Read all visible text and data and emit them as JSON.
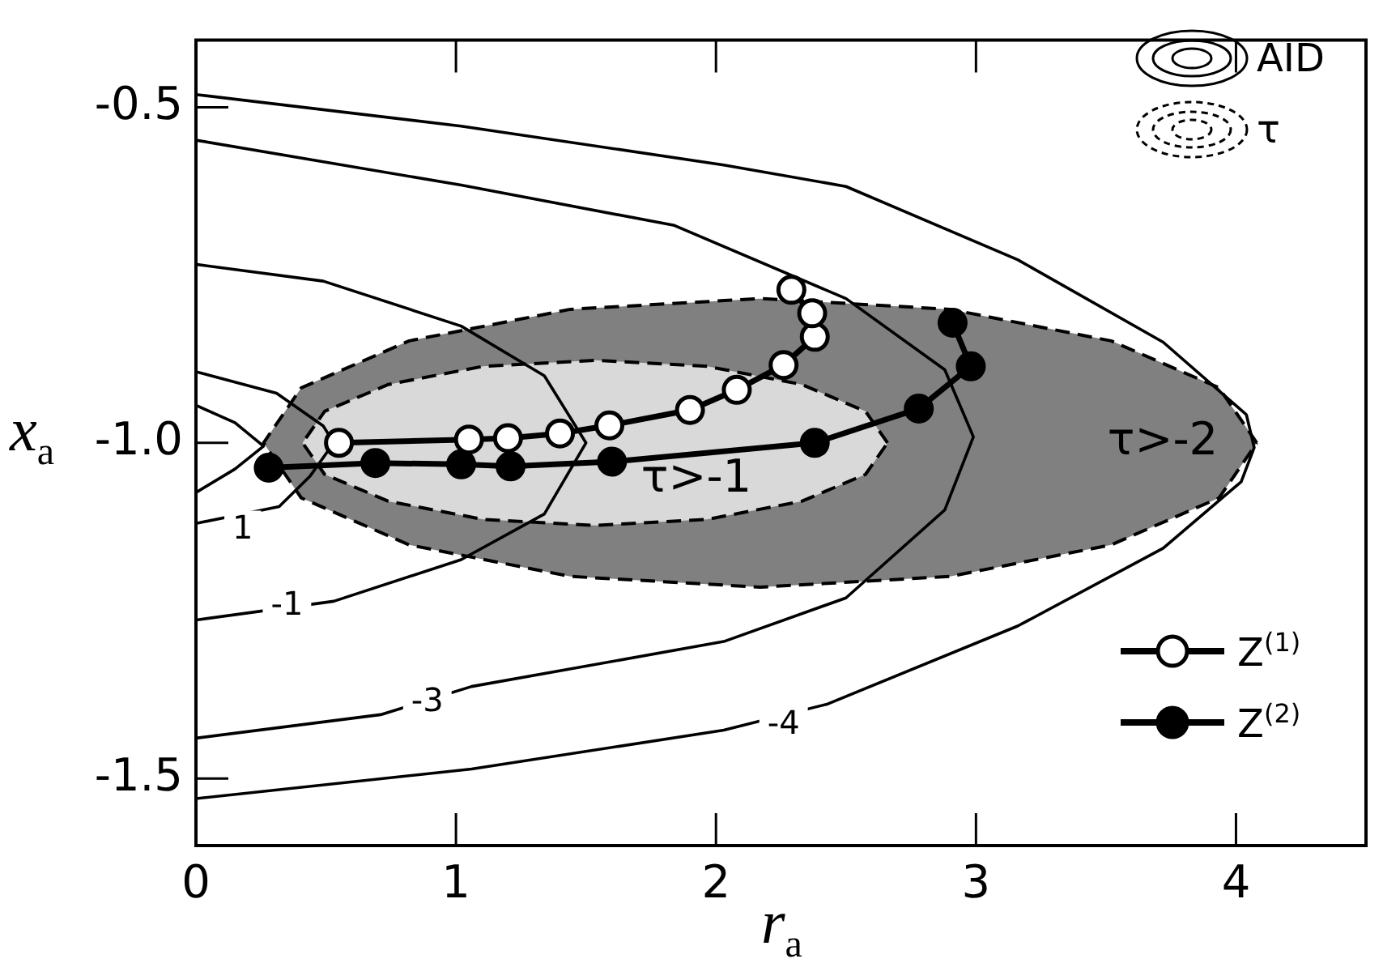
{
  "chart_data": {
    "type": "line",
    "xlabel": "r$_{a}$",
    "ylabel": "x$_{a}$",
    "xlim": [
      0,
      4.5
    ],
    "ylim": [
      -1.6,
      -0.4
    ],
    "xticks": [
      0,
      1,
      2,
      3,
      4
    ],
    "yticks": [
      {
        "value": -0.5,
        "label": "-0.5"
      },
      {
        "value": -1.0,
        "label": "-1.0"
      },
      {
        "value": -1.5,
        "label": "-1.5"
      }
    ],
    "grid": false,
    "legend": "right",
    "series": [
      {
        "type": "line",
        "name": "AID",
        "color": "#000000",
        "marker": "none",
        "x": [
          0,
          0.15,
          0.26,
          0.15,
          0
        ],
        "values": [
          -0.944,
          -0.97,
          -1.005,
          -1.039,
          -1.074
        ]
      },
      {
        "type": "line",
        "color": "#000000",
        "marker": "none",
        "x": [
          0,
          0.31,
          0.49,
          0.53,
          0.44,
          0.32,
          0
        ],
        "values": [
          -0.894,
          -0.926,
          -0.975,
          -1.0,
          -1.049,
          -1.095,
          -1.12
        ]
      },
      {
        "type": "line",
        "color": "#000000",
        "marker": "none",
        "x": [
          0,
          0.49,
          1.02,
          1.34,
          1.5,
          1.34,
          1.02,
          0.53,
          0
        ],
        "values": [
          -0.734,
          -0.759,
          -0.826,
          -0.9,
          -1.0,
          -1.106,
          -1.174,
          -1.236,
          -1.264
        ]
      },
      {
        "type": "line",
        "color": "#000000",
        "marker": "none",
        "x": [
          0,
          1.02,
          1.84,
          2.5,
          2.88,
          2.99,
          2.88,
          2.5,
          2.03,
          1.06,
          0.71,
          0
        ],
        "values": [
          -0.549,
          -0.616,
          -0.676,
          -0.785,
          -0.891,
          -0.991,
          -1.1,
          -1.231,
          -1.296,
          -1.363,
          -1.405,
          -1.44
        ]
      },
      {
        "type": "line",
        "color": "#000000",
        "marker": "none",
        "x": [
          0,
          1.02,
          2.03,
          2.5,
          3.16,
          3.72,
          4.04,
          4.07,
          4.02,
          3.72,
          3.16,
          2.43,
          2.03,
          1.06,
          0
        ],
        "values": [
          -0.481,
          -0.528,
          -0.586,
          -0.618,
          -0.727,
          -0.85,
          -0.958,
          -1.007,
          -1.058,
          -1.157,
          -1.273,
          -1.389,
          -1.428,
          -1.486,
          -1.53
        ]
      },
      {
        "type": "area",
        "name": "τ",
        "color": "#808080",
        "line_style": "dashed",
        "x": [
          4.08,
          3.935,
          3.52,
          2.9,
          2.17,
          1.44,
          0.82,
          0.405,
          0.26,
          0.405,
          0.82,
          1.44,
          2.17,
          2.9,
          3.52,
          3.935,
          4.08
        ],
        "values": [
          -1.0,
          -0.918,
          -0.848,
          -0.801,
          -0.785,
          -0.801,
          -0.848,
          -0.918,
          -1.0,
          -1.082,
          -1.152,
          -1.199,
          -1.215,
          -1.199,
          -1.152,
          -1.082,
          -1.0
        ]
      },
      {
        "type": "area",
        "color": "#d9d9d9",
        "line_style": "dashed",
        "x": [
          2.66,
          2.575,
          2.33,
          1.966,
          1.535,
          1.104,
          0.74,
          0.495,
          0.41,
          0.495,
          0.74,
          1.104,
          1.535,
          1.966,
          2.33,
          2.575,
          2.66
        ],
        "values": [
          -1.0,
          -0.953,
          -0.913,
          -0.886,
          -0.877,
          -0.886,
          -0.913,
          -0.953,
          -1.0,
          -1.047,
          -1.087,
          -1.114,
          -1.123,
          -1.114,
          -1.087,
          -1.047,
          -1.0
        ]
      },
      {
        "type": "line",
        "name": "Z$^{(1)}$",
        "color": "#ffffff",
        "marker": "circle",
        "x": [
          0.55,
          1.05,
          1.2,
          1.4,
          1.59,
          1.9,
          2.08,
          2.26,
          2.38,
          2.37,
          2.29
        ],
        "values": [
          -1.0,
          -0.995,
          -0.993,
          -0.986,
          -0.974,
          -0.951,
          -0.921,
          -0.884,
          -0.842,
          -0.807,
          -0.772
        ]
      },
      {
        "type": "line",
        "name": "Z$^{(2)}$",
        "color": "#000000",
        "marker": "circle",
        "x": [
          0.28,
          0.69,
          1.02,
          1.21,
          1.6,
          2.38,
          2.78,
          2.98,
          2.91
        ],
        "values": [
          -1.037,
          -1.03,
          -1.032,
          -1.035,
          -1.028,
          -1.0,
          -0.949,
          -0.886,
          -0.821
        ]
      }
    ],
    "annotations": [
      {
        "text": "1",
        "x": 0.18,
        "y": -1.13
      },
      {
        "text": "-1",
        "x": 0.35,
        "y": -1.243
      },
      {
        "text": "-3",
        "x": 0.89,
        "y": -1.387
      },
      {
        "text": "-4",
        "x": 2.26,
        "y": -1.421
      },
      "τ>-1",
      "τ>-2"
    ]
  }
}
